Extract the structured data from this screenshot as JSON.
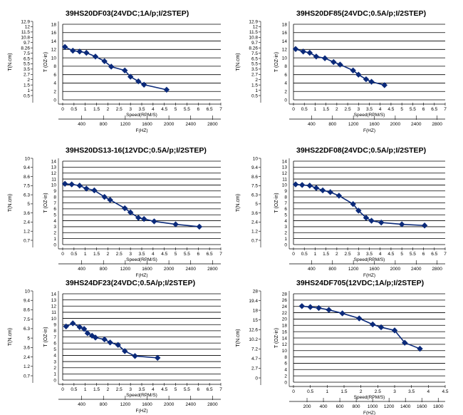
{
  "chart_data": [
    {
      "type": "line",
      "title": "39HS20DF03(24VDC;1A/p;I/2STEP)",
      "left_ylabel": "T(N.cm)",
      "ylabel": "T (OZ-in)",
      "xlabel": "Speed(RPM/S)",
      "x2label": "F(HZ)",
      "left_ticks": [
        "12.9",
        "12",
        "11.5",
        "10.8",
        "9.7",
        "8.26",
        "7.5",
        "6.5",
        "5.5",
        "3.5",
        "2.7",
        "2",
        "1.5",
        "1",
        "0.5"
      ],
      "ylim": [
        0,
        18
      ],
      "y_ticks": [
        "18",
        "16",
        "14",
        "12",
        "10",
        "8",
        "6",
        "4",
        "2",
        "0"
      ],
      "xlim": [
        0,
        7
      ],
      "x_ticks": [
        "0",
        "0.5",
        "1",
        "1.5",
        "2",
        "2.5",
        "3",
        "3.5",
        "4",
        "4.5",
        "5",
        "5.5",
        "6",
        "6.5",
        "7"
      ],
      "x2_ticks": [
        "400",
        "800",
        "1200",
        "1600",
        "2000",
        "2400",
        "2800"
      ],
      "series": [
        {
          "x": [
            0.1,
            0.45,
            0.75,
            1.05,
            1.45,
            1.85,
            2.15,
            2.75,
            3.0,
            3.35,
            3.6,
            4.6
          ],
          "y": [
            12.6,
            11.7,
            11.5,
            11.2,
            10.3,
            9.2,
            7.9,
            7.0,
            5.5,
            4.4,
            3.6,
            2.4
          ]
        }
      ]
    },
    {
      "type": "line",
      "title": "39HS20DF85(24VDC;0.5A/p;I/2STEP)",
      "left_ylabel": "T(N.cm)",
      "ylabel": "T (OZ-in)",
      "xlabel": "Speed(RPM/S)",
      "x2label": "F(HZ)",
      "left_ticks": [
        "12.9",
        "12",
        "11.5",
        "10.8",
        "9.7",
        "8.26",
        "7.5",
        "6.5",
        "5.5",
        "3.5",
        "2.7",
        "2",
        "1.5",
        "1",
        "0.5"
      ],
      "ylim": [
        0,
        18
      ],
      "y_ticks": [
        "18",
        "16",
        "14",
        "12",
        "10",
        "8",
        "6",
        "4",
        "2",
        "0"
      ],
      "xlim": [
        0,
        7
      ],
      "x_ticks": [
        "0",
        "0.5",
        "1",
        "1.5",
        "2",
        "2.5",
        "3",
        "3.5",
        "4",
        "4.5",
        "5",
        "5.5",
        "6",
        "6.5",
        "7"
      ],
      "x2_ticks": [
        "400",
        "800",
        "1200",
        "1600",
        "2000",
        "2400",
        "2800"
      ],
      "series": [
        {
          "x": [
            0.1,
            0.45,
            0.75,
            1.05,
            1.45,
            1.85,
            2.15,
            2.75,
            3.0,
            3.35,
            3.6,
            4.2
          ],
          "y": [
            12.1,
            11.5,
            11.2,
            10.3,
            9.9,
            9.0,
            8.4,
            7.0,
            6.0,
            4.9,
            4.3,
            3.5
          ]
        }
      ]
    },
    {
      "type": "line",
      "title": "39HS20DS13-16(12VDC;0.5A/p;I/2STEP)",
      "left_ylabel": "T(N.cm)",
      "ylabel": "T (OZ-in)",
      "xlabel": "Speed(RPM/S)",
      "x2label": "F(HZ)",
      "left_ticks": [
        "10",
        "9.4",
        "8.6",
        "7.5",
        "6.3",
        "5",
        "3.6",
        "2.4",
        "1.2",
        "0.7"
      ],
      "ylim": [
        0,
        14
      ],
      "y_ticks": [
        "14",
        "13",
        "12",
        "11",
        "10",
        "9",
        "8",
        "7",
        "6",
        "5",
        "4",
        "3",
        "2",
        "1",
        "0"
      ],
      "xlim": [
        0,
        7
      ],
      "x_ticks": [
        "0",
        "0.5",
        "1",
        "1.5",
        "2",
        "2.5",
        "3",
        "3.5",
        "4",
        "4.5",
        "5",
        "5.5",
        "6",
        "6.5",
        "7"
      ],
      "x2_ticks": [
        "400",
        "800",
        "1200",
        "1600",
        "2000",
        "2400",
        "2800"
      ],
      "series": [
        {
          "x": [
            0.1,
            0.4,
            0.75,
            1.05,
            1.4,
            1.85,
            2.1,
            2.75,
            3.0,
            3.35,
            3.6,
            4.05,
            5.0,
            6.05
          ],
          "y": [
            10.2,
            10.1,
            9.9,
            9.4,
            9.1,
            8.0,
            7.5,
            6.1,
            5.4,
            4.5,
            4.3,
            3.9,
            3.4,
            3.0
          ]
        }
      ]
    },
    {
      "type": "line",
      "title": "39HS22DF08(24VDC;0.5A/p;I/2STEP)",
      "left_ylabel": "T(N.cm)",
      "ylabel": "T (OZ-in)",
      "xlabel": "Speed(RPM/S)",
      "x2label": "F(HZ)",
      "left_ticks": [
        "10",
        "9.4",
        "8.6",
        "7.5",
        "6.3",
        "5",
        "3.6",
        "2.4",
        "1.2",
        "0.7"
      ],
      "ylim": [
        0,
        14
      ],
      "y_ticks": [
        "14",
        "13",
        "12",
        "11",
        "10",
        "9",
        "8",
        "7",
        "6",
        "5",
        "4",
        "3",
        "2",
        "1",
        "0"
      ],
      "xlim": [
        0,
        7
      ],
      "x_ticks": [
        "0",
        "0.5",
        "1",
        "1.5",
        "2",
        "2.5",
        "3",
        "3.5",
        "4",
        "4.5",
        "5",
        "5.5",
        "6",
        "6.5",
        "7"
      ],
      "x2_ticks": [
        "400",
        "800",
        "1200",
        "1600",
        "2000",
        "2400",
        "2800"
      ],
      "series": [
        {
          "x": [
            0.1,
            0.4,
            0.75,
            1.05,
            1.35,
            1.7,
            2.1,
            2.75,
            3.0,
            3.35,
            3.6,
            4.05,
            5.0,
            6.05
          ],
          "y": [
            10.1,
            10.0,
            9.9,
            9.5,
            9.1,
            8.8,
            8.2,
            6.8,
            5.7,
            4.5,
            4.0,
            3.7,
            3.4,
            3.2
          ]
        }
      ]
    },
    {
      "type": "line",
      "title": "39HS24DF23(24VDC;0.5A/p;I/2STEP)",
      "left_ylabel": "T(N.cm)",
      "ylabel": "T (OZ-in)",
      "xlabel": "Speed(RPM/S)",
      "x2label": "F(HZ)",
      "left_ticks": [
        "10",
        "9.4",
        "8.6",
        "7.5",
        "6.3",
        "5",
        "3.6",
        "2.4",
        "1.2",
        "0.7"
      ],
      "ylim": [
        0,
        14
      ],
      "y_ticks": [
        "14",
        "13",
        "12",
        "11",
        "10",
        "9",
        "8",
        "7",
        "6",
        "5",
        "4",
        "3",
        "2",
        "1",
        "0"
      ],
      "xlim": [
        0,
        7
      ],
      "x_ticks": [
        "0",
        "0.5",
        "1",
        "1.5",
        "2",
        "2.5",
        "3",
        "3.5",
        "4",
        "4.5",
        "5",
        "5.5",
        "6",
        "6.5",
        "7"
      ],
      "x2_ticks": [
        "400",
        "800",
        "1200",
        "1600",
        "2000",
        "2400",
        "2800"
      ],
      "series": [
        {
          "x": [
            0.15,
            0.45,
            0.75,
            0.95,
            1.1,
            1.3,
            1.45,
            1.85,
            2.1,
            2.45,
            2.75,
            3.2,
            4.2
          ],
          "y": [
            8.7,
            9.2,
            8.6,
            8.3,
            7.6,
            7.2,
            6.9,
            6.6,
            6.1,
            5.7,
            4.7,
            3.9,
            3.6
          ]
        }
      ]
    },
    {
      "type": "line",
      "title": "39HS24DF705(12VDC;1A/p;I/2STEP)",
      "left_ylabel": "T(N.cm)",
      "ylabel": "T (OZ-in)",
      "xlabel": "Speed(RPM/S)",
      "x2label": "F(HZ)",
      "left_ticks": [
        "28",
        "19.4",
        "18",
        "15",
        "12.6",
        "10.2",
        "7.2",
        "4.7",
        "2.7",
        "0"
      ],
      "ylim": [
        0,
        28
      ],
      "y_ticks": [
        "28",
        "26",
        "24",
        "22",
        "20",
        "18",
        "16",
        "14",
        "12",
        "10",
        "8",
        "6",
        "4",
        "2",
        "0"
      ],
      "xlim": [
        0,
        4.5
      ],
      "x_ticks": [
        "0",
        "0.5",
        "1",
        "1.5",
        "2",
        "2.5",
        "3",
        "3.5",
        "4",
        "4.5"
      ],
      "x2_ticks": [
        "200",
        "400",
        "600",
        "800",
        "1000",
        "1200",
        "1400",
        "1600",
        "1800"
      ],
      "series": [
        {
          "x": [
            0.25,
            0.5,
            0.75,
            1.05,
            1.45,
            1.95,
            2.35,
            2.6,
            3.0,
            3.3,
            3.75
          ],
          "y": [
            24.1,
            23.8,
            23.5,
            22.9,
            21.8,
            20.2,
            18.3,
            17.4,
            16.4,
            12.5,
            10.6
          ]
        }
      ]
    }
  ]
}
